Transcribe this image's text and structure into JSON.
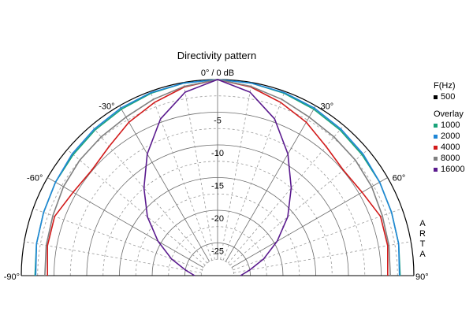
{
  "chart_data": {
    "type": "polar",
    "title": "Directivity pattern",
    "radial_unit": "dB",
    "radial_range": [
      -30,
      0
    ],
    "radial_ticks": [
      -5,
      -10,
      -15,
      -20,
      -25
    ],
    "zero_label": "0° / 0 dB",
    "angle_range": [
      -90,
      90
    ],
    "angle_labels": [
      {
        "angle": -90,
        "label": "-90°"
      },
      {
        "angle": -60,
        "label": "-60°"
      },
      {
        "angle": -30,
        "label": "-30°"
      },
      {
        "angle": 30,
        "label": "30°"
      },
      {
        "angle": 60,
        "label": "60°"
      },
      {
        "angle": 90,
        "label": "90°"
      }
    ],
    "legend_header": "F(Hz)",
    "primary": {
      "name": "500",
      "color": "#000000"
    },
    "overlay_label": "Overlay",
    "angles": [
      0,
      10,
      20,
      30,
      40,
      50,
      60,
      70,
      80,
      90
    ],
    "series": [
      {
        "name": "1000",
        "color": "#1aa37a",
        "values": [
          0,
          -0.1,
          -0.3,
          -0.6,
          -0.9,
          -1.2,
          -1.4,
          -1.7,
          -1.9,
          -2.1
        ]
      },
      {
        "name": "2000",
        "color": "#1f86d6",
        "values": [
          0,
          -0.1,
          -0.2,
          -0.4,
          -0.7,
          -1.0,
          -1.4,
          -1.7,
          -1.9,
          -2.2
        ]
      },
      {
        "name": "4000",
        "color": "#d21b1b",
        "values": [
          0,
          -0.7,
          -1.8,
          -2.9,
          -4.2,
          -4.9,
          -4.5,
          -3.5,
          -3.6,
          -4.0
        ]
      },
      {
        "name": "8000",
        "color": "#808080",
        "values": [
          0,
          -0.6,
          -1.3,
          -2.0,
          -2.3,
          -2.5,
          -2.8,
          -3.2,
          -3.4,
          -3.6
        ]
      },
      {
        "name": "16000",
        "color": "#5a1a8e",
        "values": [
          0,
          -1.5,
          -4.5,
          -8.5,
          -12.5,
          -16.0,
          -19.5,
          -22.5,
          -25.0,
          -26.5
        ]
      }
    ],
    "vendor_mark": [
      "A",
      "R",
      "T",
      "A"
    ]
  }
}
